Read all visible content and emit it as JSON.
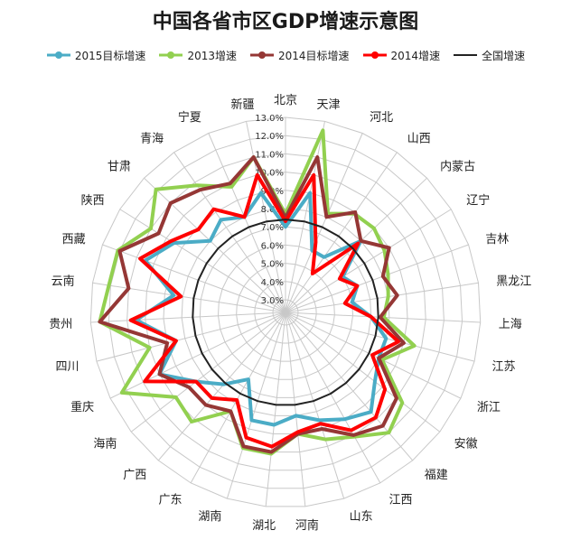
{
  "chart_data": {
    "type": "radar",
    "title": "中国各省市区GDP增速示意图",
    "categories": [
      "北京",
      "天津",
      "河北",
      "山西",
      "内蒙古",
      "辽宁",
      "吉林",
      "黑龙江",
      "上海",
      "江苏",
      "浙江",
      "安徽",
      "福建",
      "江西",
      "山东",
      "河南",
      "湖北",
      "湖南",
      "广东",
      "广西",
      "海南",
      "重庆",
      "四川",
      "贵州",
      "云南",
      "西藏",
      "陕西",
      "甘肃",
      "青海",
      "宁夏",
      "新疆"
    ],
    "rlim": [
      3.0,
      13.0
    ],
    "tick_labels": [
      "3.0%",
      "4.0%",
      "5.0%",
      "6.0%",
      "7.0%",
      "8.0%",
      "9.0%",
      "10.0%",
      "11.0%",
      "12.0%",
      "13.0%"
    ],
    "grid": true,
    "legend_position": "top",
    "series": [
      {
        "name": "2015目标增速",
        "color": "#4bacc6",
        "width": 4,
        "values": [
          7.0,
          9.0,
          6.0,
          6.0,
          8.0,
          6.0,
          6.5,
          6.0,
          7.0,
          8.0,
          8.0,
          8.5,
          9.5,
          9.0,
          8.5,
          8.0,
          8.5,
          8.5,
          6.5,
          7.5,
          8.5,
          10.0,
          8.5,
          10.5,
          8.5,
          10.5,
          9.5,
          8.0,
          8.5,
          8.0,
          9.0
        ]
      },
      {
        "name": "2013增速",
        "color": "#92d050",
        "width": 4,
        "values": [
          7.7,
          12.5,
          8.2,
          8.9,
          9.0,
          8.7,
          8.3,
          8.0,
          7.7,
          9.6,
          8.2,
          10.4,
          11.0,
          10.1,
          9.6,
          9.0,
          10.1,
          10.1,
          8.5,
          10.2,
          9.9,
          12.3,
          10.0,
          12.5,
          12.1,
          12.1,
          11.0,
          12.1,
          10.8,
          9.8,
          11.0
        ]
      },
      {
        "name": "2014目标增速",
        "color": "#953735",
        "width": 4,
        "values": [
          7.5,
          11.0,
          8.0,
          9.0,
          8.0,
          9.0,
          8.0,
          8.5,
          7.5,
          9.0,
          8.0,
          10.0,
          10.5,
          10.0,
          9.0,
          9.0,
          10.0,
          10.0,
          8.5,
          9.0,
          9.0,
          10.0,
          9.0,
          12.5,
          11.0,
          12.0,
          10.5,
          11.0,
          10.5,
          10.0,
          11.0
        ]
      },
      {
        "name": "2014增速",
        "color": "#ff0000",
        "width": 4,
        "values": [
          7.3,
          10.0,
          6.5,
          4.9,
          7.8,
          5.8,
          6.5,
          5.6,
          7.0,
          8.7,
          7.6,
          9.2,
          9.9,
          9.7,
          8.7,
          8.9,
          9.7,
          9.5,
          7.8,
          8.5,
          8.5,
          10.9,
          8.5,
          10.8,
          8.1,
          10.8,
          9.7,
          8.9,
          9.2,
          8.0,
          10.0
        ]
      },
      {
        "name": "全国增速",
        "color": "#222222",
        "width": 2,
        "values": [
          7.4,
          7.4,
          7.4,
          7.4,
          7.4,
          7.4,
          7.4,
          7.4,
          7.4,
          7.4,
          7.4,
          7.4,
          7.4,
          7.4,
          7.4,
          7.4,
          7.4,
          7.4,
          7.4,
          7.4,
          7.4,
          7.4,
          7.4,
          7.4,
          7.4,
          7.4,
          7.4,
          7.4,
          7.4,
          7.4,
          7.4
        ]
      }
    ]
  }
}
